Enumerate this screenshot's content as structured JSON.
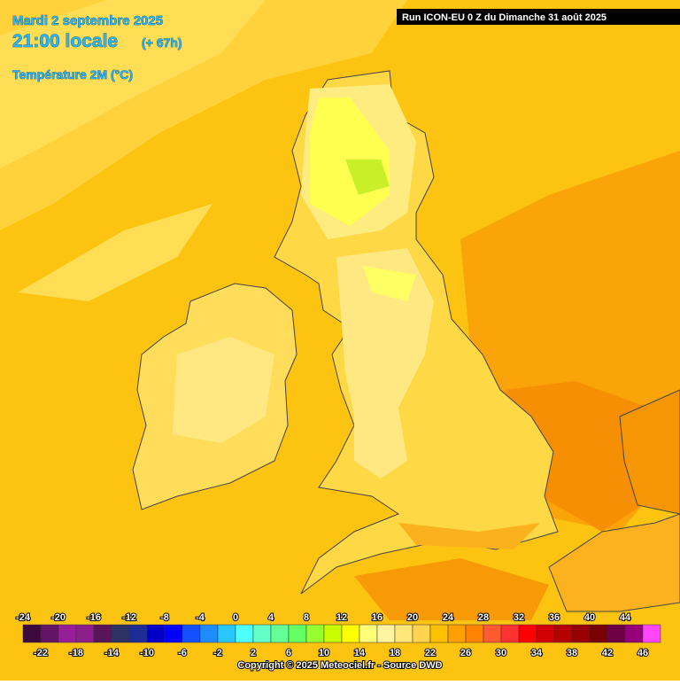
{
  "header": {
    "date": "Mardi 2 septembre 2025",
    "time": "21:00 locale",
    "lead": "(+ 67h)",
    "variable": "Température 2M (°C)"
  },
  "run_label": "Run ICON-EU 0 Z du Dimanche 31 août 2025",
  "legend": {
    "top_labels": [
      -24,
      -20,
      -16,
      -12,
      -8,
      -4,
      0,
      4,
      8,
      12,
      16,
      20,
      24,
      28,
      32,
      36,
      40,
      44
    ],
    "bottom_labels": [
      -22,
      -18,
      -14,
      -10,
      -6,
      -2,
      2,
      6,
      10,
      14,
      18,
      22,
      26,
      30,
      34,
      38,
      42,
      46
    ],
    "colors": [
      "#3c0a3c",
      "#641464",
      "#961e96",
      "#8c1e8c",
      "#5a145a",
      "#2d3264",
      "#1e2d96",
      "#0000c8",
      "#0000ff",
      "#1450ff",
      "#1e8cff",
      "#28c8ff",
      "#50ffff",
      "#64ffc8",
      "#64ff96",
      "#64ff64",
      "#96ff32",
      "#c8ff00",
      "#ffff00",
      "#ffff78",
      "#fff5a0",
      "#ffe678",
      "#ffd250",
      "#ffc000",
      "#ffa000",
      "#ff8200",
      "#ff5a32",
      "#ff3232",
      "#ff0000",
      "#d20000",
      "#b40000",
      "#960000",
      "#780000",
      "#6e0046",
      "#960078",
      "#ff46ff"
    ]
  },
  "copyright": "Copyright © 2025 Meteociel.fr - Source DWD"
}
